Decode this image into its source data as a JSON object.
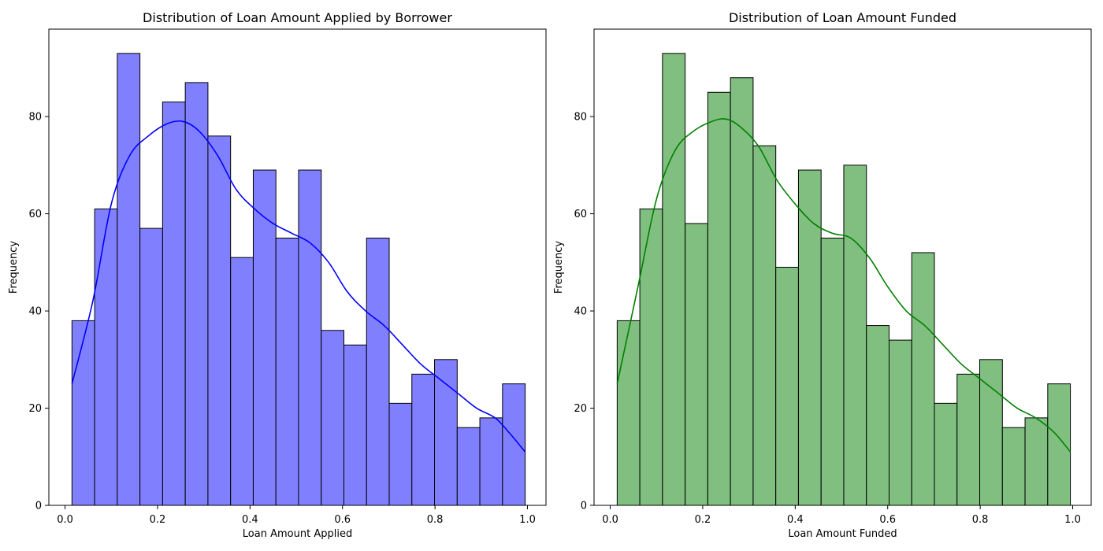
{
  "chart_data": [
    {
      "type": "histogram",
      "title": "Distribution of Loan Amount Applied by Borrower",
      "xlabel": "Loan Amount Applied",
      "ylabel": "Frequency",
      "xlim": [
        -0.035,
        1.04
      ],
      "ylim": [
        0,
        98
      ],
      "xticks": [
        0.0,
        0.2,
        0.4,
        0.6,
        0.8,
        1.0
      ],
      "xtick_labels": [
        "0.0",
        "0.2",
        "0.4",
        "0.6",
        "0.8",
        "1.0"
      ],
      "yticks": [
        0,
        20,
        40,
        60,
        80
      ],
      "ytick_labels": [
        "0",
        "20",
        "40",
        "60",
        "80"
      ],
      "bin_start": 0.015,
      "bin_width": 0.049,
      "counts": [
        38,
        61,
        93,
        57,
        83,
        87,
        76,
        51,
        69,
        55,
        69,
        36,
        33,
        55,
        21,
        27,
        30,
        16,
        18,
        25
      ],
      "bar_color": "#8080ff",
      "kde_color": "#0000ff",
      "kde": {
        "x": [
          0.015,
          0.06,
          0.1,
          0.14,
          0.18,
          0.22,
          0.255,
          0.29,
          0.33,
          0.37,
          0.41,
          0.45,
          0.49,
          0.53,
          0.57,
          0.61,
          0.65,
          0.69,
          0.73,
          0.77,
          0.81,
          0.85,
          0.89,
          0.93,
          0.96,
          0.995
        ],
        "y": [
          25,
          42,
          62,
          72,
          76,
          78.5,
          79,
          77,
          72,
          65,
          61,
          58,
          56,
          54,
          50,
          44,
          40,
          37,
          33,
          29,
          26,
          23,
          20,
          18,
          15,
          11
        ]
      }
    },
    {
      "type": "histogram",
      "title": "Distribution of Loan Amount Funded",
      "xlabel": "Loan Amount Funded",
      "ylabel": "Frequency",
      "xlim": [
        -0.035,
        1.04
      ],
      "ylim": [
        0,
        98
      ],
      "xticks": [
        0.0,
        0.2,
        0.4,
        0.6,
        0.8,
        1.0
      ],
      "xtick_labels": [
        "0.0",
        "0.2",
        "0.4",
        "0.6",
        "0.8",
        "1.0"
      ],
      "yticks": [
        0,
        20,
        40,
        60,
        80
      ],
      "ytick_labels": [
        "0",
        "20",
        "40",
        "60",
        "80"
      ],
      "bin_start": 0.015,
      "bin_width": 0.049,
      "counts": [
        38,
        61,
        93,
        58,
        85,
        88,
        74,
        49,
        69,
        55,
        70,
        37,
        34,
        52,
        21,
        27,
        30,
        16,
        18,
        25
      ],
      "bar_color": "#80bf80",
      "kde_color": "#008000",
      "kde": {
        "x": [
          0.015,
          0.06,
          0.1,
          0.14,
          0.18,
          0.22,
          0.25,
          0.28,
          0.32,
          0.36,
          0.4,
          0.44,
          0.48,
          0.52,
          0.56,
          0.6,
          0.64,
          0.68,
          0.72,
          0.76,
          0.8,
          0.84,
          0.88,
          0.92,
          0.96,
          0.995
        ],
        "y": [
          25,
          45,
          63,
          73,
          77,
          79,
          79.5,
          78,
          74,
          67,
          62,
          58,
          56,
          55,
          51,
          45,
          40,
          37,
          33,
          29,
          26,
          23,
          20,
          18,
          15,
          11
        ]
      }
    }
  ]
}
